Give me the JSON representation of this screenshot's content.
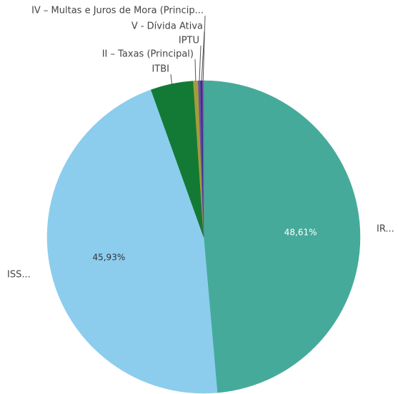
{
  "chart_data": {
    "type": "pie",
    "categories": [
      "IR...",
      "ISS...",
      "ITBI",
      "II – Taxas (Principal)",
      "IPTU",
      "V - Dívida Ativa",
      "IV – Multas e Juros de Mora (Princip..."
    ],
    "values": [
      48.61,
      45.93,
      4.4,
      0.5,
      0.25,
      0.2,
      0.11
    ],
    "value_labels": [
      "48,61%",
      "45,93%",
      null,
      null,
      null,
      null,
      null
    ],
    "colors": [
      "#46aa9b",
      "#8ccdee",
      "#137a35",
      "#a59c3a",
      "#6b4fa5",
      "#1f3b8c",
      "#a24c9c"
    ]
  }
}
